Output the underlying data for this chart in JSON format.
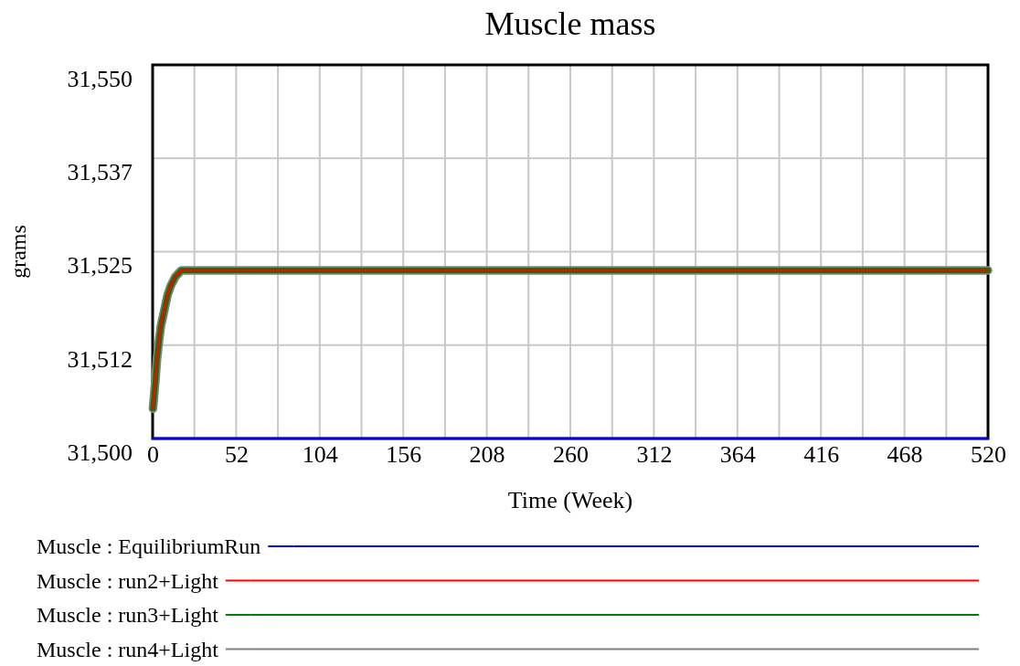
{
  "chart_data": {
    "type": "line",
    "title": "Muscle mass",
    "xlabel": "Time (Week)",
    "ylabel": "grams",
    "xlim": [
      0,
      520
    ],
    "xticks": [
      0,
      {
        "value": 26,
        "label": null
      },
      52,
      {
        "value": 78,
        "label": null
      },
      104,
      {
        "value": 130,
        "label": null
      },
      156,
      {
        "value": 182,
        "label": null
      },
      208,
      {
        "value": 234,
        "label": null
      },
      260,
      {
        "value": 286,
        "label": null
      },
      312,
      {
        "value": 338,
        "label": null
      },
      364,
      {
        "value": 390,
        "label": null
      },
      416,
      {
        "value": 442,
        "label": null
      },
      468,
      {
        "value": 494,
        "label": null
      },
      520
    ],
    "ylim": [
      31500,
      31550
    ],
    "yticks": [
      {
        "value": 31500,
        "label": "31,500"
      },
      {
        "value": 31512.5,
        "label": "31,512"
      },
      {
        "value": 31525,
        "label": "31,525"
      },
      {
        "value": 31537.5,
        "label": "31,537"
      },
      {
        "value": 31550,
        "label": "31,550"
      }
    ],
    "grid": true,
    "legend": "bottom",
    "series": [
      {
        "name": "Muscle : EquilibriumRun",
        "color": "#0000ff",
        "x": [
          0,
          520
        ],
        "values": [
          31500,
          31500
        ]
      },
      {
        "name": "Muscle : run2+Light",
        "color": "#ff0000",
        "x": [
          0.2,
          1.7,
          2.7,
          4,
          5.1,
          6.4,
          7.8,
          9.3,
          11.2,
          14,
          17.8,
          520
        ],
        "values": [
          31504,
          31507.7,
          31510.6,
          31513.1,
          31515,
          31516.3,
          31517.7,
          31519.2,
          31520.4,
          31521.6,
          31522.5,
          31522.5
        ]
      },
      {
        "name": "Muscle : run3+Light",
        "color": "#008000",
        "x": [
          0.2,
          1.7,
          2.7,
          4,
          5.1,
          6.4,
          7.8,
          9.3,
          11.2,
          14,
          17.8,
          520
        ],
        "values": [
          31504,
          31507.7,
          31510.6,
          31513.1,
          31515,
          31516.3,
          31517.7,
          31519.2,
          31520.4,
          31521.6,
          31522.5,
          31522.5
        ]
      },
      {
        "name": "Muscle : run4+Light",
        "color": "#808080",
        "x": [
          0.2,
          1.7,
          2.7,
          4,
          5.1,
          6.4,
          7.8,
          9.3,
          11.2,
          14,
          17.8,
          520
        ],
        "values": [
          31504,
          31507.7,
          31510.6,
          31513.1,
          31515,
          31516.3,
          31517.7,
          31519.2,
          31520.4,
          31521.6,
          31522.5,
          31522.5
        ]
      }
    ]
  }
}
